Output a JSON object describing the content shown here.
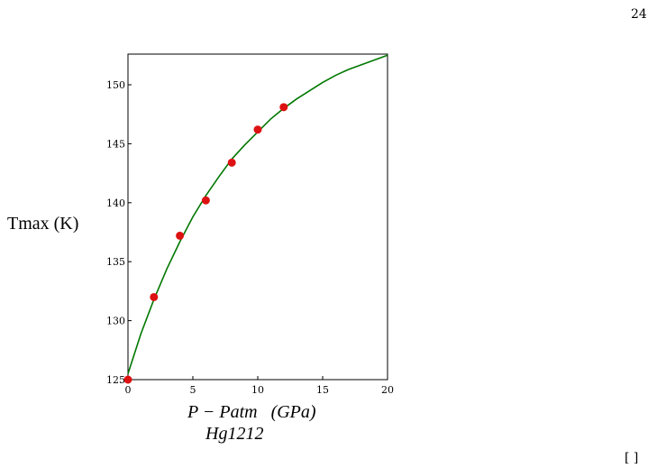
{
  "page": {
    "number": "24",
    "footnote_mark": "[ ]"
  },
  "chart_data": {
    "type": "scatter",
    "title": "",
    "ylabel": "Tmax (K)",
    "xlabel": "P − Patm   (GPa)",
    "caption": "Hg1212",
    "xlim": [
      0,
      20
    ],
    "ylim": [
      125,
      152.6
    ],
    "x_ticks": [
      0,
      5,
      10,
      15,
      20
    ],
    "y_ticks": [
      125,
      130,
      135,
      140,
      145,
      150
    ],
    "grid": false,
    "legend": "none",
    "series": [
      {
        "kind": "points",
        "x": [
          0,
          2,
          4,
          6,
          8,
          10,
          12
        ],
        "y": [
          125.0,
          132.0,
          137.2,
          140.2,
          143.4,
          146.2,
          148.1
        ],
        "color": "#dd1111"
      },
      {
        "kind": "fit-line",
        "x": [
          0,
          1,
          2,
          3,
          4,
          5,
          6,
          7,
          8,
          9,
          10,
          11,
          12,
          13,
          14,
          15,
          16,
          17,
          18,
          19,
          20
        ],
        "y": [
          125.5,
          128.9,
          131.8,
          134.4,
          136.7,
          138.8,
          140.6,
          142.2,
          143.7,
          144.9,
          146.0,
          147.1,
          148.0,
          148.8,
          149.5,
          150.2,
          150.8,
          151.3,
          151.7,
          152.1,
          152.5
        ],
        "color": "#007700"
      }
    ]
  }
}
